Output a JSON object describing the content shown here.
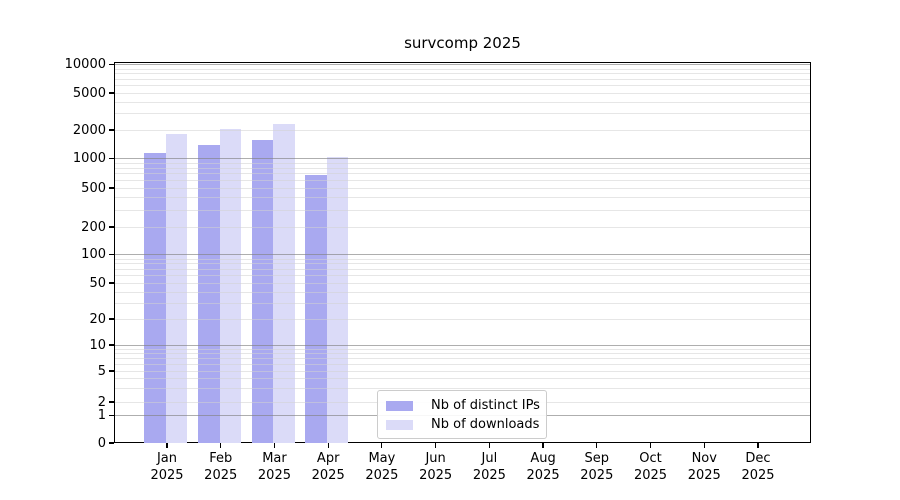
{
  "chart_data": {
    "type": "bar",
    "title": "survcomp 2025",
    "x": {
      "months": [
        "Jan",
        "Feb",
        "Mar",
        "Apr",
        "May",
        "Jun",
        "Jul",
        "Aug",
        "Sep",
        "Oct",
        "Nov",
        "Dec"
      ],
      "year": "2025"
    },
    "y_ticks": [
      0,
      1,
      2,
      5,
      10,
      20,
      50,
      100,
      200,
      500,
      1000,
      2000,
      5000,
      10000
    ],
    "y_scale": "symlog",
    "ylim": [
      0,
      10000
    ],
    "grid": "on",
    "legend_position": "lower center inside plot",
    "series": [
      {
        "name": "Nb of distinct IPs",
        "color": "#a9a9f0",
        "values": [
          1130,
          1370,
          1560,
          680,
          null,
          null,
          null,
          null,
          null,
          null,
          null,
          null
        ]
      },
      {
        "name": "Nb of downloads",
        "color": "#dbdbf8",
        "values": [
          1810,
          2030,
          2320,
          1030,
          null,
          null,
          null,
          null,
          null,
          null,
          null,
          null
        ]
      }
    ],
    "colors": {
      "axis": "#000000",
      "major_grid": "#b0b0b0",
      "minor_grid": "#e7e7e7",
      "background": "#ffffff"
    }
  }
}
